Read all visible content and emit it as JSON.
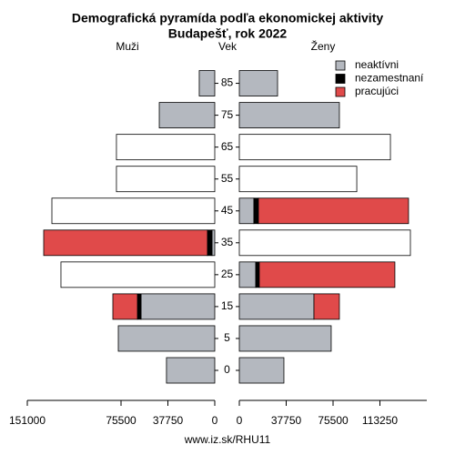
{
  "chart_data": {
    "type": "pyramid",
    "title": "Demografická pyramída podľa ekonomickej aktivity",
    "subtitle": "Budapešť, rok 2022",
    "left_label": "Muži",
    "center_label": "Vek",
    "right_label": "Ženy",
    "categories": [
      "0",
      "5",
      "15",
      "25",
      "35",
      "45",
      "55",
      "65",
      "75",
      "85"
    ],
    "xlim": [
      0,
      151000
    ],
    "left_xticks": [
      151000,
      75500,
      37750,
      0
    ],
    "right_xticks": [
      0,
      37750,
      75500,
      113250
    ],
    "series": [
      {
        "name": "neaktívni",
        "color": "#b4b8bf",
        "male": [
          38900,
          77700,
          59400,
          null,
          2200,
          null,
          null,
          null,
          44700,
          12500
        ],
        "female": [
          35900,
          74000,
          60100,
          13200,
          null,
          11700,
          null,
          null,
          80600,
          30800
        ]
      },
      {
        "name": "nezamestnaní",
        "color": "#000000",
        "male": [
          null,
          null,
          2900,
          null,
          3700,
          null,
          null,
          null,
          null,
          null
        ],
        "female": [
          null,
          null,
          null,
          2900,
          null,
          3700,
          null,
          null,
          null,
          null
        ]
      },
      {
        "name": "pracujúci",
        "color": "#e04a4a",
        "male": [
          null,
          null,
          19800,
          null,
          131900,
          null,
          null,
          null,
          null,
          null
        ],
        "female": [
          null,
          null,
          20500,
          109200,
          null,
          120900,
          null,
          null,
          null,
          null
        ]
      },
      {
        "color": "#ffffff",
        "male": [
          null,
          null,
          null,
          123900,
          null,
          131200,
          79200,
          79200,
          null,
          null
        ],
        "female": [
          null,
          null,
          null,
          null,
          137800,
          null,
          94600,
          121700,
          null,
          null
        ]
      }
    ],
    "source": "www.iz.sk/RHU11"
  }
}
